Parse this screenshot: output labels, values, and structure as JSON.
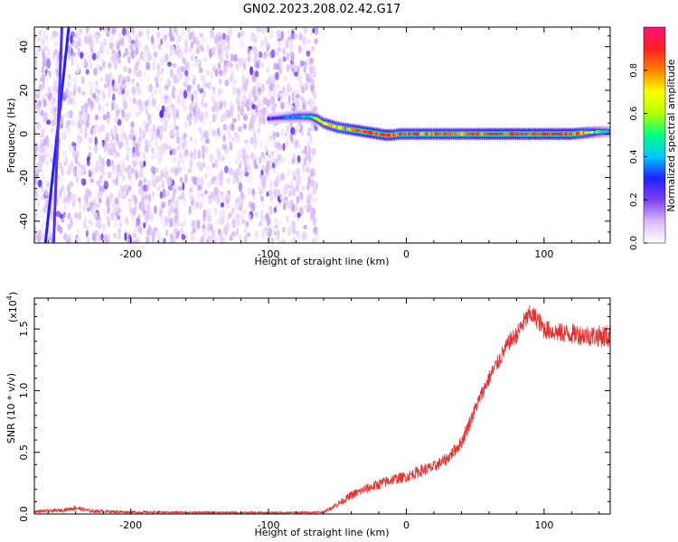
{
  "figure_title": "GN02.2023.208.02.42.G17",
  "chart_data": [
    {
      "type": "heatmap",
      "title": "GN02.2023.208.02.42.G17",
      "xlabel": "Height of straight line (km)",
      "ylabel": "Frequency (Hz)",
      "xlim": [
        -270,
        148
      ],
      "ylim": [
        -50,
        49
      ],
      "xticks": [
        -200,
        -100,
        0,
        100
      ],
      "xtick_labels": [
        "-200",
        "-100",
        "0",
        "100"
      ],
      "yticks": [
        -40,
        -20,
        0,
        20,
        40
      ],
      "ytick_labels": [
        "-40",
        "-20",
        "0",
        "20",
        "40"
      ],
      "colorbar": {
        "label": "Normalized spectral amplitude",
        "range": [
          0,
          1
        ],
        "ticks": [
          0.0,
          0.2,
          0.4,
          0.6,
          0.8
        ],
        "tick_labels": [
          "0.0",
          "0.2",
          "0.4",
          "0.6",
          "0.8"
        ],
        "colormap": [
          "#ffffff",
          "#d8b8f8",
          "#8040f0",
          "#2020ff",
          "#00c8ff",
          "#00ff80",
          "#b0ff00",
          "#ffff00",
          "#ff8000",
          "#ff2020",
          "#ff1080"
        ]
      },
      "noise_region": {
        "x_range": [
          -270,
          -65
        ],
        "y_range": [
          -50,
          49
        ],
        "typical_amplitude": 0.05
      },
      "steep_lines": [
        {
          "x": [
            -262,
            -245
          ],
          "y": [
            -50,
            49
          ],
          "amplitude": 0.15
        },
        {
          "x": [
            -256,
            -250
          ],
          "y": [
            -50,
            49
          ],
          "amplitude": 0.1
        }
      ],
      "ridge": {
        "x": [
          -100,
          -90,
          -80,
          -70,
          -65,
          -60,
          -55,
          -50,
          -45,
          -40,
          -35,
          -30,
          -25,
          -20,
          -15,
          -10,
          -5,
          0,
          20,
          40,
          60,
          80,
          100,
          120,
          130,
          140,
          148
        ],
        "y": [
          7,
          7.5,
          8,
          8,
          7,
          5,
          4,
          3,
          2.5,
          2,
          1.5,
          1,
          0.5,
          0,
          -0.5,
          -0.5,
          0,
          0,
          0,
          0,
          0,
          0,
          0,
          0,
          0.5,
          1,
          1
        ],
        "amplitude": [
          0.25,
          0.3,
          0.4,
          0.45,
          0.6,
          0.7,
          0.8,
          0.8,
          0.8,
          0.85,
          0.9,
          0.9,
          0.9,
          0.9,
          0.9,
          0.85,
          0.85,
          0.85,
          0.85,
          0.85,
          0.9,
          0.9,
          0.9,
          0.9,
          0.75,
          0.5,
          0.4
        ]
      }
    },
    {
      "type": "line",
      "title": "",
      "xlabel": "Height of straight line (km)",
      "ylabel": "SNR (10 * v/v)",
      "multiplier_label": "(x10",
      "multiplier_exponent": "4",
      "multiplier_close": ")",
      "xlim": [
        -270,
        148
      ],
      "ylim": [
        0,
        17500
      ],
      "xticks": [
        -200,
        -100,
        0,
        100
      ],
      "xtick_labels": [
        "-200",
        "-100",
        "0",
        "100"
      ],
      "yticks": [
        0,
        5000,
        10000,
        15000
      ],
      "ytick_labels": [
        "0.0",
        "0.5",
        "1.0",
        "1.5"
      ],
      "series": [
        {
          "color": "#e8302f",
          "x": [
            -270,
            -250,
            -240,
            -230,
            -200,
            -150,
            -100,
            -80,
            -60,
            -50,
            -40,
            -30,
            -20,
            -10,
            0,
            10,
            20,
            30,
            40,
            50,
            55,
            60,
            65,
            70,
            75,
            80,
            85,
            90,
            95,
            100,
            110,
            120,
            130,
            140,
            148
          ],
          "y": [
            200,
            300,
            500,
            250,
            150,
            120,
            100,
            110,
            150,
            800,
            1500,
            2000,
            2400,
            2800,
            3000,
            3500,
            3800,
            4500,
            5800,
            8500,
            9800,
            11000,
            12000,
            13000,
            14000,
            14500,
            15500,
            16200,
            15800,
            15000,
            14700,
            14600,
            14500,
            14400,
            14400
          ],
          "noise": [
            120,
            150,
            200,
            150,
            100,
            90,
            80,
            80,
            100,
            250,
            350,
            400,
            450,
            450,
            450,
            500,
            500,
            500,
            550,
            600,
            600,
            650,
            650,
            700,
            700,
            750,
            800,
            800,
            800,
            800,
            800,
            850,
            850,
            900,
            1000
          ]
        }
      ]
    }
  ]
}
